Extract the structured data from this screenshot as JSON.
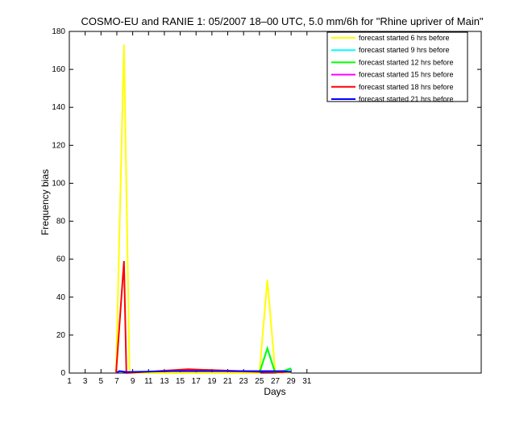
{
  "chart_data": {
    "type": "line",
    "title": "COSMO-EU and RANIE 1: 05/2007 18–00 UTC, 5.0 mm/6h for \"Rhine upriver of Main\"",
    "xlabel": "Days",
    "ylabel": "Frequency bias",
    "xlim": [
      1,
      53
    ],
    "ylim": [
      0,
      180
    ],
    "xticks": [
      1,
      3,
      5,
      7,
      9,
      11,
      13,
      15,
      17,
      19,
      21,
      23,
      25,
      27,
      29,
      31
    ],
    "yticks": [
      0,
      20,
      40,
      60,
      80,
      100,
      120,
      140,
      160,
      180
    ],
    "grid": false,
    "legend_position": "top-right",
    "series": [
      {
        "name": "forecast started 6 hrs before",
        "color": "#ffff00",
        "points": [
          [
            6.9,
            0
          ],
          [
            7.9,
            173
          ],
          [
            8.6,
            0
          ],
          [
            9.5,
            0
          ],
          [
            25,
            0
          ],
          [
            26,
            49
          ],
          [
            27,
            0
          ],
          [
            28,
            0
          ],
          [
            29,
            0
          ]
        ]
      },
      {
        "name": "forecast started 9 hrs before",
        "color": "#00ffff",
        "points": [
          [
            25,
            0
          ],
          [
            26,
            13
          ],
          [
            27,
            0
          ],
          [
            28,
            1
          ],
          [
            29,
            2
          ]
        ]
      },
      {
        "name": "forecast started 12 hrs before",
        "color": "#00ff00",
        "points": [
          [
            25,
            0
          ],
          [
            26,
            13
          ],
          [
            27,
            0
          ],
          [
            28,
            1
          ],
          [
            29,
            2.5
          ]
        ]
      },
      {
        "name": "forecast started 15 hrs before",
        "color": "#ff00ff",
        "points": [
          [
            14,
            1.2
          ],
          [
            16,
            1.5
          ],
          [
            28,
            0.4
          ],
          [
            29,
            0.8
          ]
        ]
      },
      {
        "name": "forecast started 18 hrs before",
        "color": "#ff0000",
        "points": [
          [
            6.9,
            0
          ],
          [
            7.9,
            59
          ],
          [
            8.2,
            0
          ],
          [
            16,
            2
          ],
          [
            26,
            0.5
          ],
          [
            27,
            0.5
          ],
          [
            28,
            0.5
          ]
        ]
      },
      {
        "name": "forecast started 21 hrs before",
        "color": "#0000ff",
        "points": [
          [
            7,
            0
          ],
          [
            7.3,
            1
          ],
          [
            8.2,
            0.5
          ],
          [
            14,
            1
          ],
          [
            28,
            1
          ],
          [
            29,
            0.5
          ]
        ]
      }
    ]
  }
}
